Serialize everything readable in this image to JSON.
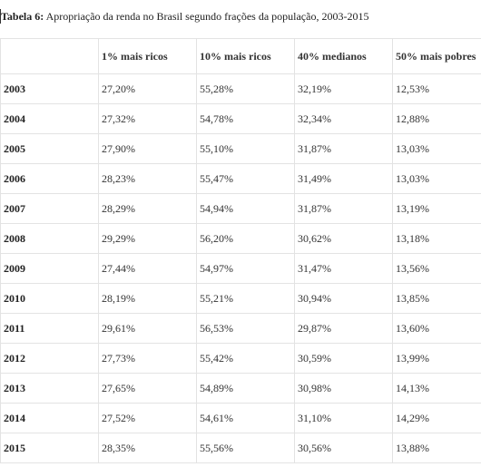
{
  "caption": {
    "label": "Tabela 6:",
    "text": " Apropriação da renda no Brasil segundo frações da população, 2003-2015"
  },
  "table": {
    "corner": "",
    "headers": [
      "1% mais ricos",
      "10% mais ricos",
      "40% medianos",
      "50% mais pobres"
    ],
    "rows": [
      {
        "year": "2003",
        "values": [
          "27,20%",
          "55,28%",
          "32,19%",
          "12,53%"
        ]
      },
      {
        "year": "2004",
        "values": [
          "27,32%",
          "54,78%",
          "32,34%",
          "12,88%"
        ]
      },
      {
        "year": "2005",
        "values": [
          "27,90%",
          "55,10%",
          "31,87%",
          "13,03%"
        ]
      },
      {
        "year": "2006",
        "values": [
          "28,23%",
          "55,47%",
          "31,49%",
          "13,03%"
        ]
      },
      {
        "year": "2007",
        "values": [
          "28,29%",
          "54,94%",
          "31,87%",
          "13,19%"
        ]
      },
      {
        "year": "2008",
        "values": [
          "29,29%",
          "56,20%",
          "30,62%",
          "13,18%"
        ]
      },
      {
        "year": "2009",
        "values": [
          "27,44%",
          "54,97%",
          "31,47%",
          "13,56%"
        ]
      },
      {
        "year": "2010",
        "values": [
          "28,19%",
          "55,21%",
          "30,94%",
          "13,85%"
        ]
      },
      {
        "year": "2011",
        "values": [
          "29,61%",
          "56,53%",
          "29,87%",
          "13,60%"
        ]
      },
      {
        "year": "2012",
        "values": [
          "27,73%",
          "55,42%",
          "30,59%",
          "13,99%"
        ]
      },
      {
        "year": "2013",
        "values": [
          "27,65%",
          "54,89%",
          "30,98%",
          "14,13%"
        ]
      },
      {
        "year": "2014",
        "values": [
          "27,52%",
          "54,61%",
          "31,10%",
          "14,29%"
        ]
      },
      {
        "year": "2015",
        "values": [
          "28,35%",
          "55,56%",
          "30,56%",
          "13,88%"
        ]
      }
    ]
  }
}
